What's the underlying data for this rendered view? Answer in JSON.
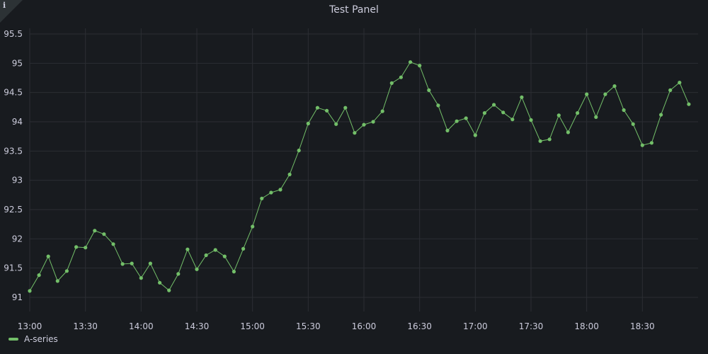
{
  "panel": {
    "title": "Test Panel",
    "info_glyph": "i",
    "info_icon": "info-icon"
  },
  "colors": {
    "background": "#181b1f",
    "grid": "#2b2e33",
    "series": "#73bf69",
    "text": "#ccccdc"
  },
  "legend": {
    "placement": "bottom-left",
    "items": [
      {
        "label": "A-series",
        "color": "#73bf69"
      }
    ]
  },
  "chart_data": {
    "type": "line",
    "title": "Test Panel",
    "xlabel": "",
    "ylabel": "",
    "grid": true,
    "xlim": [
      "13:00",
      "19:00"
    ],
    "ylim": [
      91,
      95.5
    ],
    "x_ticks": [
      "13:00",
      "13:30",
      "14:00",
      "14:30",
      "15:00",
      "15:30",
      "16:00",
      "16:30",
      "17:00",
      "17:30",
      "18:00",
      "18:30"
    ],
    "y_ticks": [
      "91",
      "91.5",
      "92",
      "92.5",
      "93",
      "93.5",
      "94",
      "94.5",
      "95",
      "95.5"
    ],
    "series": [
      {
        "name": "A-series",
        "color": "#73bf69",
        "points": [
          [
            "13:00",
            91.11
          ],
          [
            "13:05",
            91.38
          ],
          [
            "13:10",
            91.7
          ],
          [
            "13:15",
            91.28
          ],
          [
            "13:20",
            91.45
          ],
          [
            "13:25",
            91.86
          ],
          [
            "13:30",
            91.85
          ],
          [
            "13:35",
            92.14
          ],
          [
            "13:40",
            92.08
          ],
          [
            "13:45",
            91.91
          ],
          [
            "13:50",
            91.57
          ],
          [
            "13:55",
            91.58
          ],
          [
            "14:00",
            91.33
          ],
          [
            "14:05",
            91.58
          ],
          [
            "14:10",
            91.25
          ],
          [
            "14:15",
            91.12
          ],
          [
            "14:20",
            91.4
          ],
          [
            "14:25",
            91.82
          ],
          [
            "14:30",
            91.48
          ],
          [
            "14:35",
            91.72
          ],
          [
            "14:40",
            91.81
          ],
          [
            "14:45",
            91.7
          ],
          [
            "14:50",
            91.44
          ],
          [
            "14:55",
            91.83
          ],
          [
            "15:00",
            92.21
          ],
          [
            "15:05",
            92.69
          ],
          [
            "15:10",
            92.79
          ],
          [
            "15:15",
            92.84
          ],
          [
            "15:20",
            93.1
          ],
          [
            "15:25",
            93.51
          ],
          [
            "15:30",
            93.97
          ],
          [
            "15:35",
            94.24
          ],
          [
            "15:40",
            94.19
          ],
          [
            "15:45",
            93.96
          ],
          [
            "15:50",
            94.24
          ],
          [
            "15:55",
            93.81
          ],
          [
            "16:00",
            93.95
          ],
          [
            "16:05",
            94.0
          ],
          [
            "16:10",
            94.18
          ],
          [
            "16:15",
            94.66
          ],
          [
            "16:20",
            94.76
          ],
          [
            "16:25",
            95.02
          ],
          [
            "16:30",
            94.96
          ],
          [
            "16:35",
            94.54
          ],
          [
            "16:40",
            94.28
          ],
          [
            "16:45",
            93.85
          ],
          [
            "16:50",
            94.01
          ],
          [
            "16:55",
            94.06
          ],
          [
            "17:00",
            93.77
          ],
          [
            "17:05",
            94.15
          ],
          [
            "17:10",
            94.29
          ],
          [
            "17:15",
            94.16
          ],
          [
            "17:20",
            94.04
          ],
          [
            "17:25",
            94.42
          ],
          [
            "17:30",
            94.03
          ],
          [
            "17:35",
            93.67
          ],
          [
            "17:40",
            93.7
          ],
          [
            "17:45",
            94.11
          ],
          [
            "17:50",
            93.82
          ],
          [
            "17:55",
            94.15
          ],
          [
            "18:00",
            94.47
          ],
          [
            "18:05",
            94.08
          ],
          [
            "18:10",
            94.47
          ],
          [
            "18:15",
            94.61
          ],
          [
            "18:20",
            94.2
          ],
          [
            "18:25",
            93.96
          ],
          [
            "18:30",
            93.6
          ],
          [
            "18:35",
            93.64
          ],
          [
            "18:40",
            94.12
          ],
          [
            "18:45",
            94.54
          ],
          [
            "18:50",
            94.67
          ],
          [
            "18:55",
            94.3
          ]
        ]
      }
    ]
  }
}
